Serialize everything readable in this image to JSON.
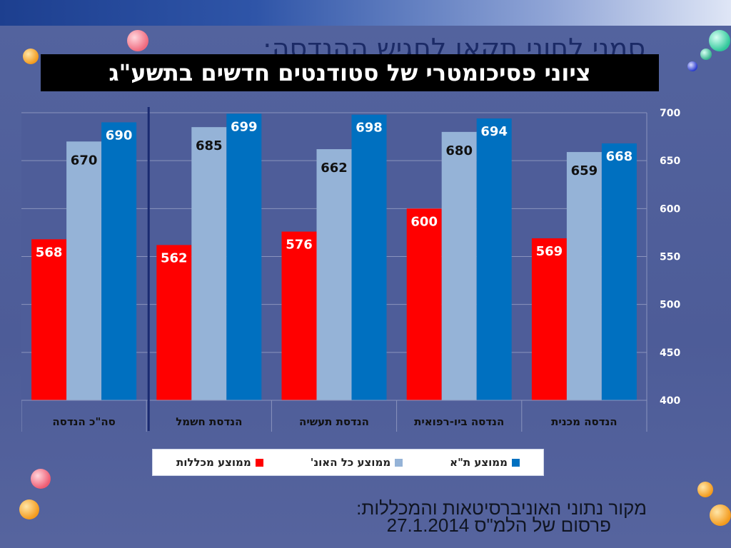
{
  "slide": {
    "background_title": "סמני לחוני תקאו לחגיש ההנדסה:",
    "title": "ציוני פסיכומטרי של סטודנטים חדשים בתשע\"ג",
    "source_line1": "מקור נתוני האוניברסיטאות והמכללות:",
    "source_line2": "פרסום של הלמ\"ס  27.1.2014"
  },
  "chart_data": {
    "type": "bar",
    "categories": [
      "הנדסה מכנית",
      "הנדסה ביו-רפואית",
      "הנדסת תעשיה",
      "הנדסת חשמל",
      "סה\"כ הנדסה"
    ],
    "series": [
      {
        "name": "ממוצע מכללות",
        "color": "#ff0000",
        "values": [
          569,
          600,
          576,
          562,
          568
        ]
      },
      {
        "name": "ממוצע כל האונ'",
        "color": "#95b3d7",
        "values": [
          659,
          680,
          662,
          685,
          670
        ]
      },
      {
        "name": "ממוצע ת\"א",
        "color": "#0070c0",
        "values": [
          668,
          694,
          698,
          699,
          690
        ]
      }
    ],
    "ylim": [
      400,
      700
    ],
    "yticks": [
      400,
      450,
      500,
      550,
      600,
      650,
      700
    ],
    "y_axis_side": "right",
    "grid": true,
    "legend_position": "bottom",
    "separator_after_category": "הנדסת חשמל"
  }
}
